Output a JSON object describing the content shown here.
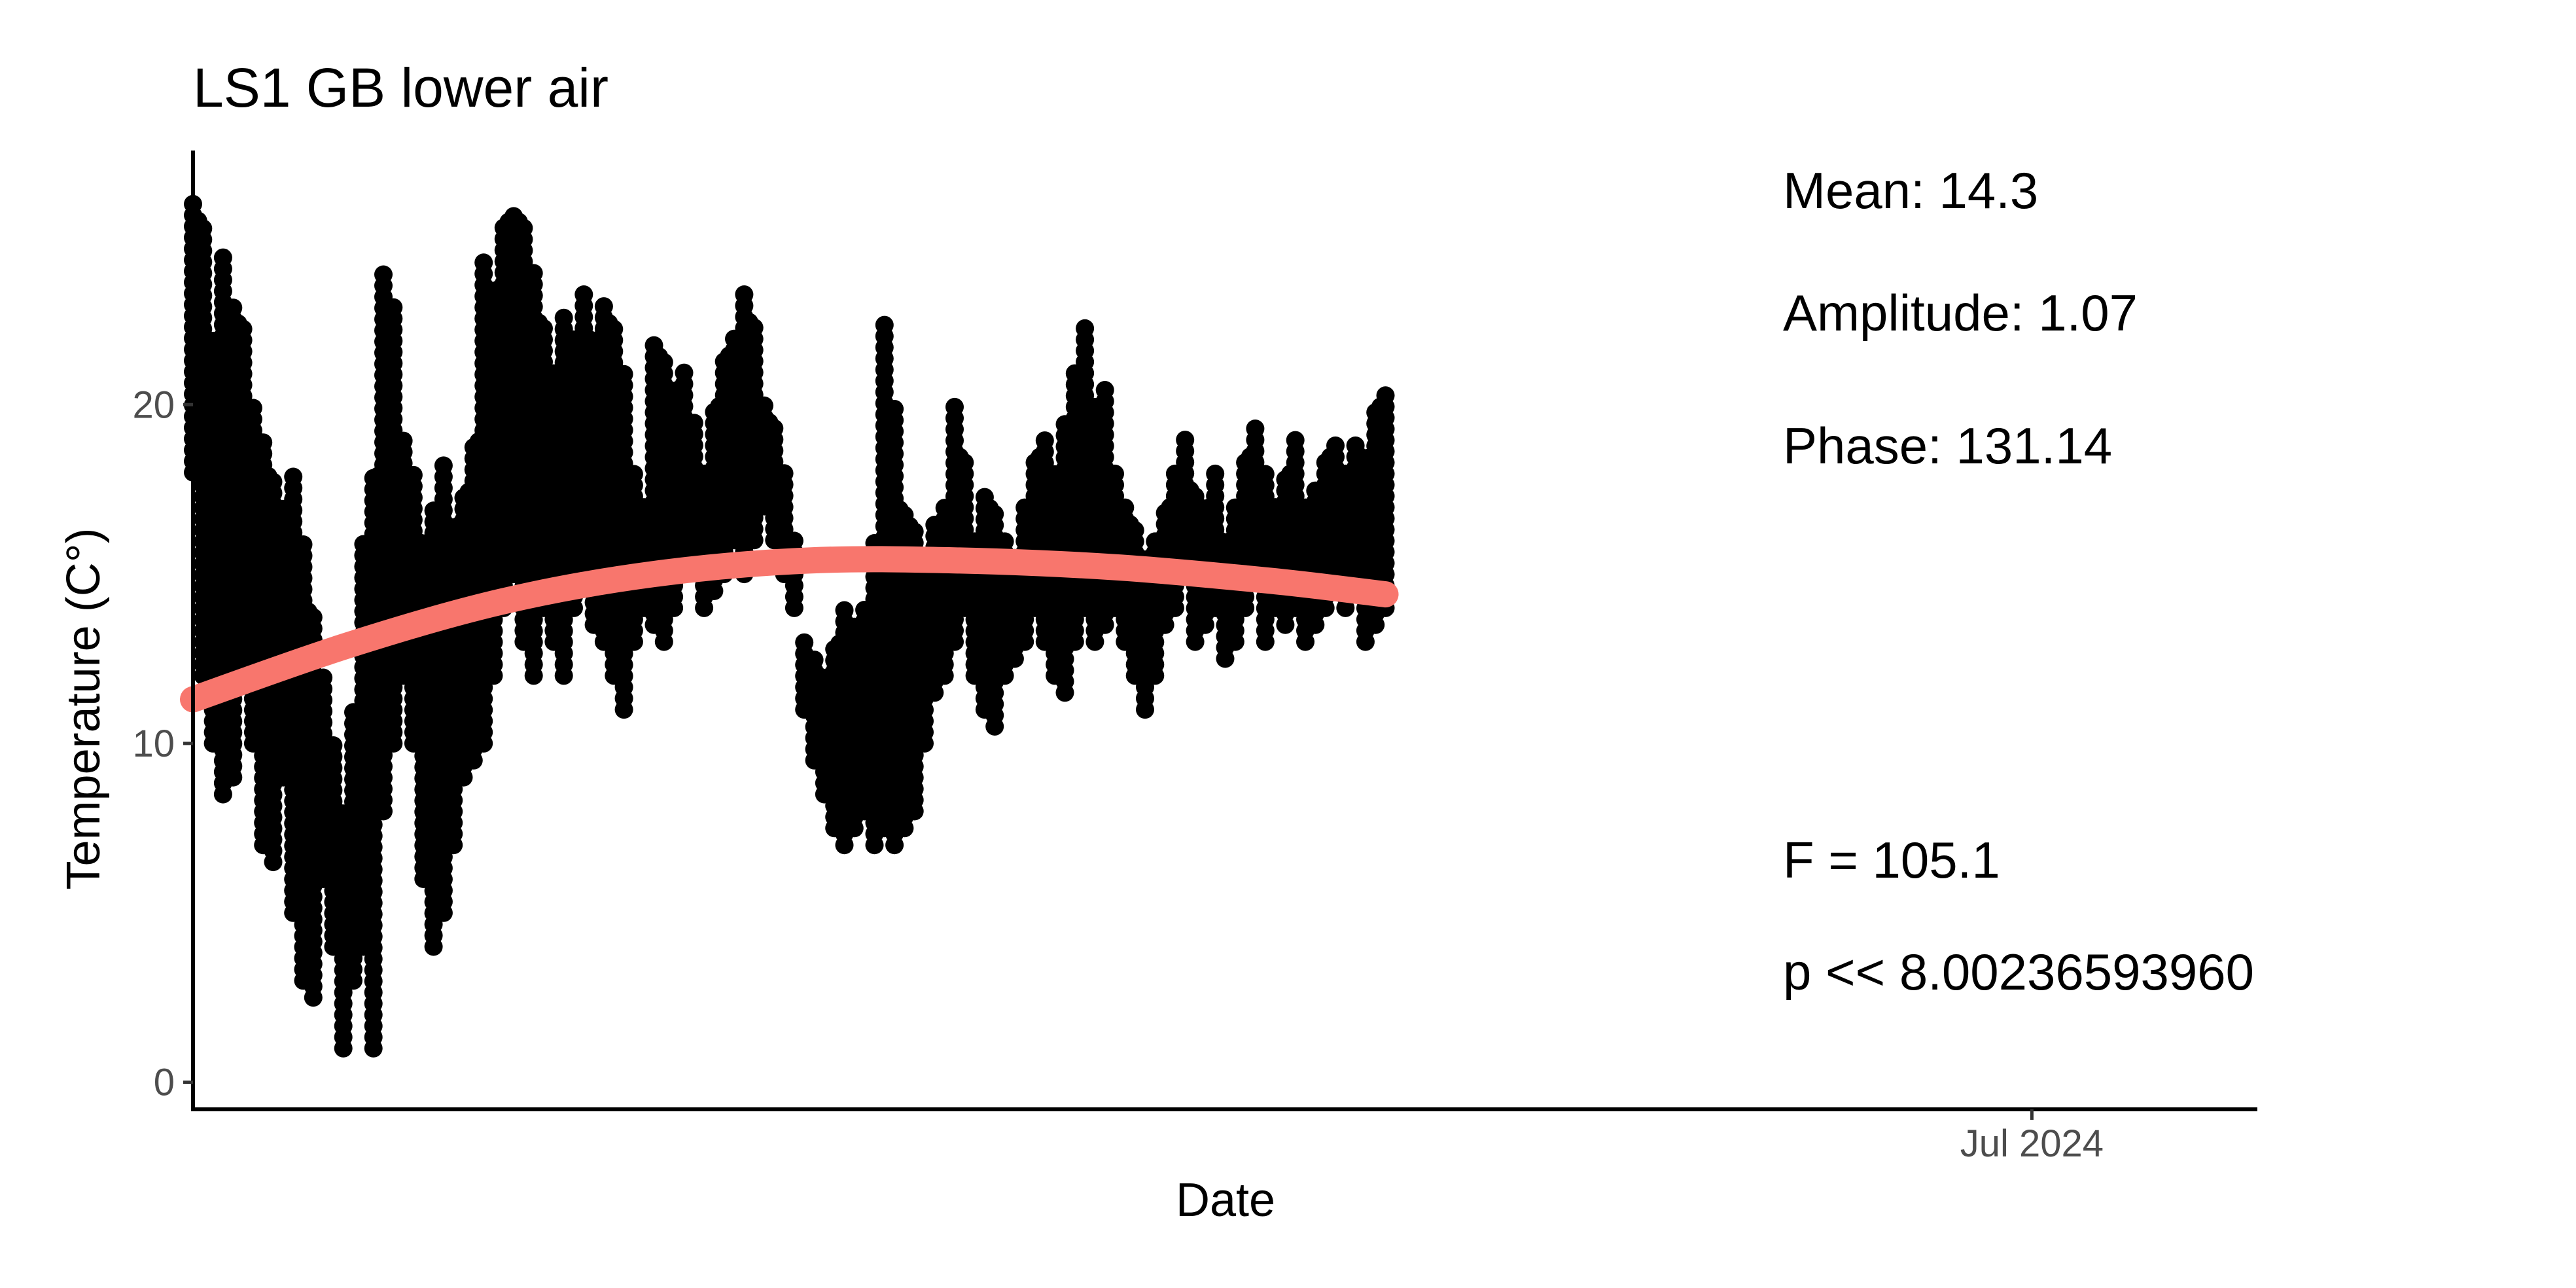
{
  "chart_data": {
    "type": "scatter",
    "title": "LS1 GB lower air",
    "xlabel": "Date",
    "ylabel": "Temperature (C°)",
    "ylim": [
      -0.8,
      27.5
    ],
    "xlim": [
      "2023-06-30",
      "2024-08-15"
    ],
    "x_ticks": [
      {
        "value": "2024-07-01",
        "label": "Jul 2024"
      }
    ],
    "y_ticks": [
      0,
      10,
      20
    ],
    "grid": false,
    "legend": "none",
    "colors": {
      "points": "#000000",
      "fit": "#F8766D"
    },
    "annotations": {
      "mean": "Mean: 14.3",
      "amplitude": "Amplitude: 1.07",
      "phase": "Phase: 131.14",
      "f_stat": "F =  105.1",
      "p_value": "p <<  8.00236593960"
    },
    "series": [
      {
        "kind": "points",
        "x": [
          "2023-06-30",
          "2023-07-02",
          "2023-07-04",
          "2023-07-06",
          "2023-07-08",
          "2023-07-10",
          "2023-07-12",
          "2023-07-14",
          "2023-07-16",
          "2023-07-18",
          "2023-07-20",
          "2023-07-22",
          "2023-07-24",
          "2023-07-26",
          "2023-07-28",
          "2023-07-30",
          "2023-08-01",
          "2023-08-03",
          "2023-08-05",
          "2023-08-07",
          "2023-08-09",
          "2023-08-11",
          "2023-08-13",
          "2023-08-15",
          "2023-08-17",
          "2023-08-19",
          "2023-08-21",
          "2023-08-23",
          "2023-08-25",
          "2023-08-27",
          "2023-08-29",
          "2023-08-31",
          "2023-09-02",
          "2023-09-04",
          "2023-09-06",
          "2023-09-08",
          "2023-09-10",
          "2023-09-12",
          "2023-09-14",
          "2023-09-16",
          "2023-09-18",
          "2023-09-20",
          "2023-09-22",
          "2023-09-24",
          "2023-09-26",
          "2023-09-28",
          "2023-09-30",
          "2023-10-02",
          "2023-10-04",
          "2023-10-06",
          "2023-10-08",
          "2023-10-10",
          "2023-10-12",
          "2023-10-14",
          "2023-10-16",
          "2023-10-18",
          "2023-10-20",
          "2023-10-22",
          "2023-10-24",
          "2023-10-26",
          "2023-10-28",
          "2023-10-30",
          "2023-11-01",
          "2023-11-03",
          "2023-11-05",
          "2023-11-07",
          "2023-11-09",
          "2023-11-11",
          "2023-11-13",
          "2023-11-15",
          "2023-11-17",
          "2023-11-19",
          "2023-11-21",
          "2023-11-23",
          "2023-11-25",
          "2023-11-27",
          "2023-11-29",
          "2023-12-01",
          "2023-12-03",
          "2023-12-05",
          "2023-12-07",
          "2023-12-09",
          "2023-12-11",
          "2023-12-13",
          "2023-12-15",
          "2023-12-17",
          "2023-12-19",
          "2023-12-21",
          "2023-12-23",
          "2023-12-25",
          "2023-12-27",
          "2023-12-29",
          "2023-12-31",
          "2024-01-02",
          "2024-01-04",
          "2024-01-06",
          "2024-01-08",
          "2024-01-10",
          "2024-01-12",
          "2024-01-14",
          "2024-01-16",
          "2024-01-18",
          "2024-01-20",
          "2024-01-22",
          "2024-01-24",
          "2024-01-26",
          "2024-01-28",
          "2024-01-30",
          "2024-02-01",
          "2024-02-03",
          "2024-02-05",
          "2024-02-07",
          "2024-02-09",
          "2024-02-11",
          "2024-02-13",
          "2024-02-15",
          "2024-02-17",
          "2024-02-19",
          "2024-02-21",
          "2024-02-23"
        ],
        "low": [
          18.0,
          12.0,
          10.0,
          8.5,
          9.0,
          12.0,
          10.0,
          7.0,
          6.5,
          9.0,
          5.0,
          3.0,
          2.5,
          6.0,
          4.0,
          1.0,
          3.0,
          4.0,
          1.0,
          8.0,
          10.0,
          12.0,
          10.0,
          6.0,
          4.0,
          5.0,
          7.0,
          9.0,
          9.5,
          10.0,
          12.0,
          14.0,
          15.0,
          13.0,
          12.0,
          14.0,
          13.0,
          12.0,
          14.0,
          15.0,
          13.5,
          13.0,
          12.0,
          11.0,
          13.0,
          14.0,
          13.5,
          13.0,
          14.0,
          15.0,
          15.5,
          14.0,
          14.5,
          15.0,
          16.0,
          15.0,
          16.0,
          17.0,
          16.0,
          15.0,
          14.0,
          11.0,
          9.5,
          8.5,
          7.5,
          7.0,
          7.5,
          8.0,
          7.0,
          7.5,
          7.0,
          7.5,
          8.0,
          10.0,
          11.5,
          12.0,
          13.0,
          14.0,
          12.0,
          11.0,
          10.5,
          12.0,
          12.5,
          13.0,
          14.0,
          13.0,
          12.0,
          11.5,
          13.0,
          14.0,
          13.0,
          13.5,
          14.0,
          13.0,
          12.0,
          11.0,
          12.0,
          13.5,
          14.0,
          15.0,
          13.0,
          13.5,
          14.0,
          12.5,
          13.0,
          14.0,
          15.0,
          13.0,
          14.0,
          13.5,
          14.0,
          13.0,
          13.5,
          14.0,
          14.5,
          14.0,
          14.5,
          13.0,
          13.5,
          14.0
        ],
        "high": [
          26.0,
          25.5,
          22.0,
          24.5,
          23.0,
          22.5,
          20.0,
          19.0,
          18.0,
          17.0,
          18.0,
          16.0,
          14.0,
          12.0,
          10.0,
          8.0,
          11.0,
          16.0,
          18.0,
          24.0,
          23.0,
          19.0,
          18.0,
          16.0,
          17.0,
          18.5,
          16.5,
          17.5,
          19.0,
          24.5,
          23.5,
          25.5,
          25.8,
          25.5,
          24.0,
          22.5,
          21.0,
          22.8,
          22.0,
          23.5,
          22.0,
          23.2,
          22.5,
          21.0,
          18.0,
          17.0,
          22.0,
          21.5,
          20.5,
          21.0,
          19.5,
          18.0,
          20.0,
          21.5,
          22.0,
          23.5,
          22.5,
          20.0,
          19.5,
          18.0,
          16.0,
          13.0,
          12.5,
          12.0,
          13.0,
          14.0,
          13.5,
          14.0,
          16.0,
          22.5,
          20.0,
          17.0,
          16.5,
          15.0,
          16.5,
          17.0,
          20.0,
          18.5,
          16.0,
          17.5,
          17.0,
          16.0,
          15.5,
          17.0,
          18.5,
          19.0,
          18.0,
          19.5,
          21.0,
          22.5,
          20.0,
          20.5,
          18.0,
          17.0,
          16.5,
          15.5,
          16.0,
          17.0,
          18.0,
          19.0,
          17.5,
          17.0,
          18.0,
          16.0,
          17.0,
          18.5,
          19.5,
          18.0,
          17.0,
          18.0,
          19.0,
          17.0,
          17.5,
          18.5,
          19.0,
          18.0,
          19.0,
          18.5,
          20.0,
          20.3
        ]
      },
      {
        "kind": "fit",
        "x": [
          "2023-06-30",
          "2023-07-31",
          "2023-08-31",
          "2023-09-30",
          "2023-10-31",
          "2023-11-30",
          "2023-12-31",
          "2024-01-31",
          "2024-02-23"
        ],
        "y": [
          11.3,
          12.9,
          14.2,
          15.0,
          15.4,
          15.4,
          15.2,
          14.8,
          14.4
        ]
      }
    ]
  }
}
